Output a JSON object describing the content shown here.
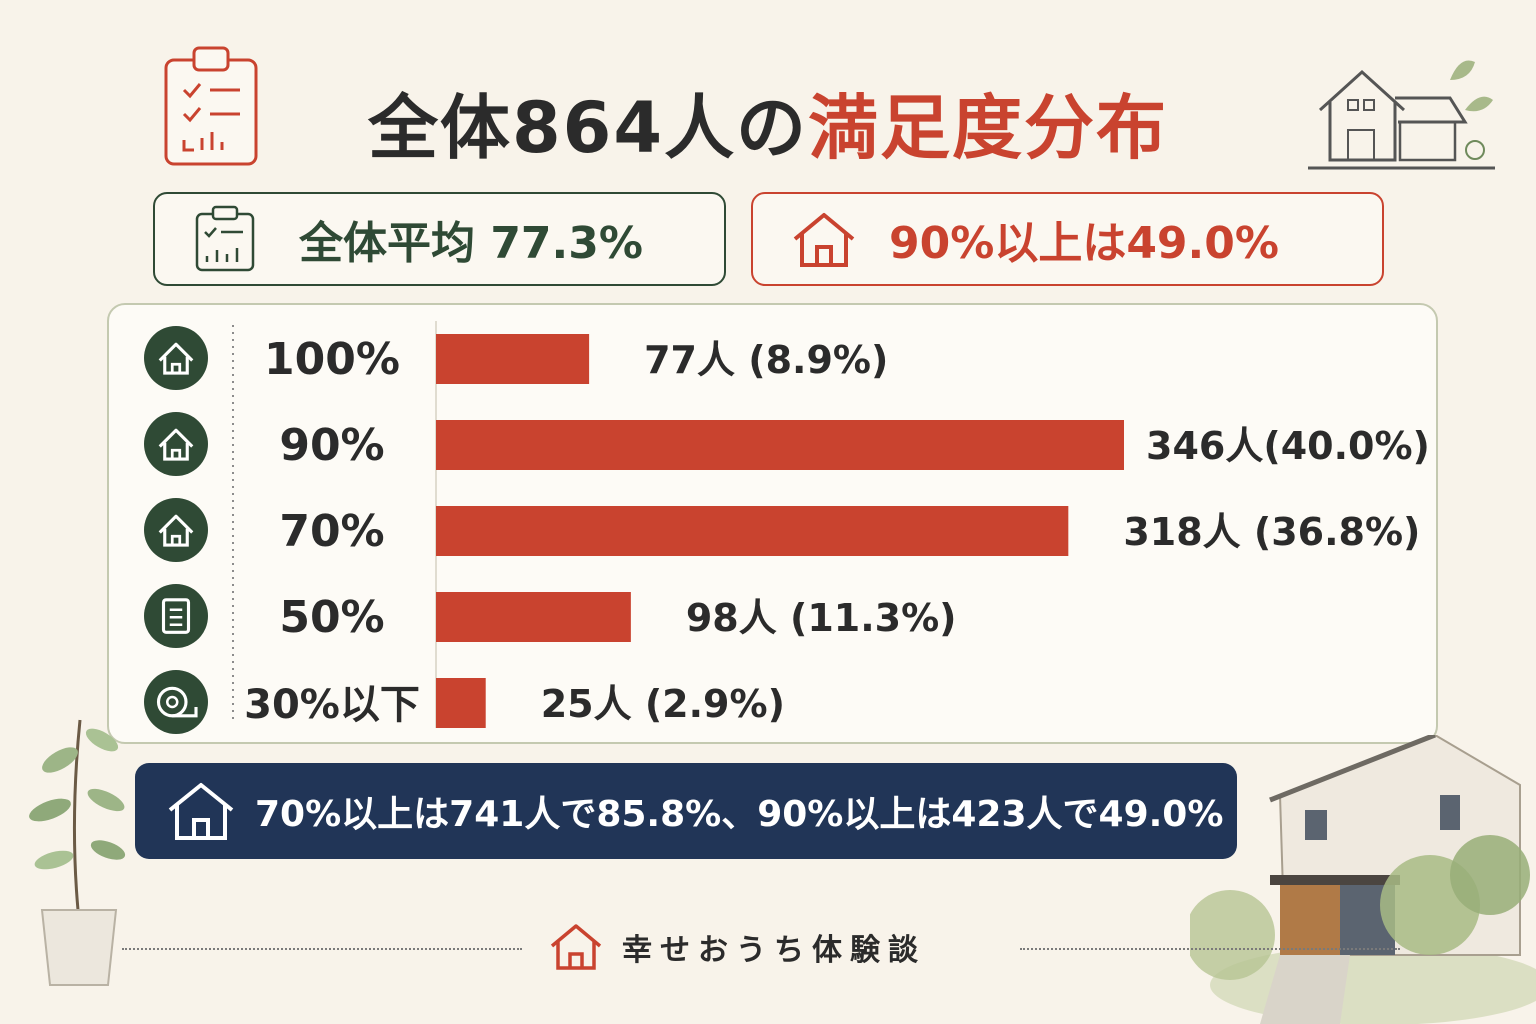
{
  "title": {
    "part1": "全体",
    "number": "864",
    "part2": "人の",
    "part3": "満足度分布"
  },
  "stats": {
    "average": "全体平均 77.3%",
    "over90": "90%以上は49.0%"
  },
  "chart_data": {
    "type": "bar",
    "orientation": "horizontal",
    "categories": [
      "100%",
      "90%",
      "70%",
      "50%",
      "30%以下"
    ],
    "values": [
      77,
      346,
      318,
      98,
      25
    ],
    "percentages": [
      8.9,
      40.0,
      36.8,
      11.3,
      2.9
    ],
    "data_labels": [
      "77人 (8.9%)",
      "346人(40.0%)",
      "318人 (36.8%)",
      "98人 (11.3%)",
      "25人 (2.9%)"
    ],
    "row_icons": [
      "house-icon",
      "house-icon",
      "house-icon",
      "document-icon",
      "measuring-tape-icon"
    ],
    "bar_color": "#c9432f",
    "icon_color": "#2f4a35",
    "xlim": [
      0,
      346
    ],
    "grid": false,
    "legend": "none"
  },
  "summary": {
    "text": "70%以上は741人で85.8%、90%以上は423人で49.0%"
  },
  "footer": {
    "brand": "幸せおうち体験談"
  },
  "colors": {
    "background": "#f8f3ea",
    "accent_red": "#c9432f",
    "accent_green": "#2f4a35",
    "navy": "#213557"
  }
}
